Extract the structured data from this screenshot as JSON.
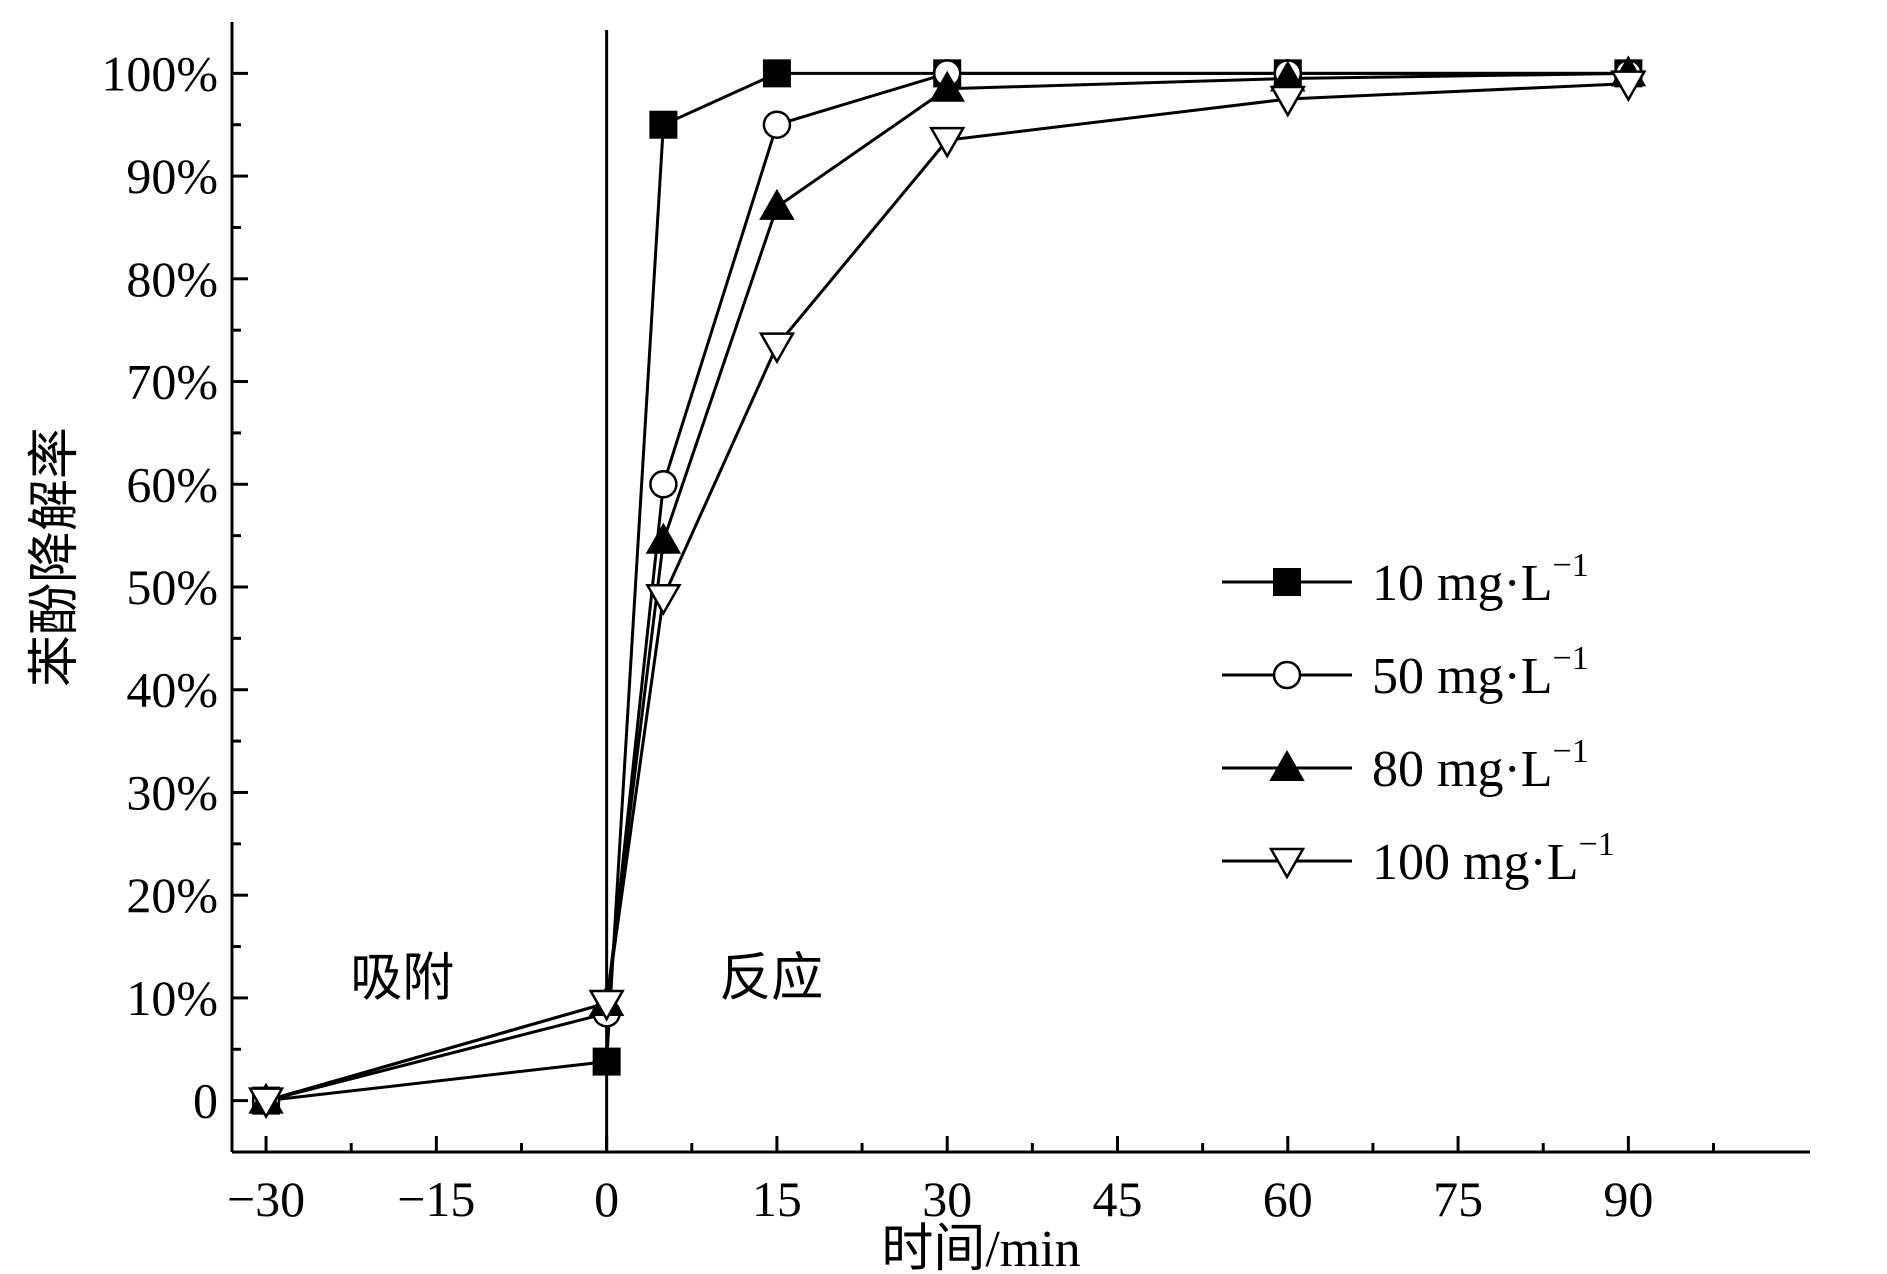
{
  "chart_data": {
    "type": "line",
    "title": "",
    "xlabel": "时间/min",
    "ylabel": "苯酚降解率",
    "xlim": [
      -33,
      106
    ],
    "ylim": [
      -5,
      105
    ],
    "xticks": [
      -30,
      -15,
      0,
      15,
      30,
      45,
      60,
      75,
      90
    ],
    "xtick_labels": [
      "−30",
      "−15",
      "0",
      "15",
      "30",
      "45",
      "60",
      "75",
      "90"
    ],
    "yticks": [
      0,
      10,
      20,
      30,
      40,
      50,
      60,
      70,
      80,
      90,
      100
    ],
    "ytick_labels": [
      "0",
      "10%",
      "20%",
      "30%",
      "40%",
      "50%",
      "60%",
      "70%",
      "80%",
      "90%",
      "100%"
    ],
    "grid": false,
    "legend_position": "right-middle",
    "divider_x": 0,
    "annotations": [
      {
        "text": "吸附",
        "x": -18,
        "y": 12
      },
      {
        "text": "反应",
        "x": 14.5,
        "y": 12
      }
    ],
    "series": [
      {
        "name": "10 mg·L",
        "name_sup": "−1",
        "marker": "square-filled",
        "x": [
          -30,
          0,
          5,
          15,
          30,
          60,
          90
        ],
        "y": [
          0,
          3.8,
          95,
          100,
          100,
          100,
          100
        ]
      },
      {
        "name": "50 mg·L",
        "name_sup": "−1",
        "marker": "circle-open",
        "x": [
          -30,
          0,
          5,
          15,
          30,
          60,
          90
        ],
        "y": [
          0,
          8.5,
          60,
          95,
          100,
          100,
          100
        ]
      },
      {
        "name": "80 mg·L",
        "name_sup": "−1",
        "marker": "triangle-up-filled",
        "x": [
          -30,
          0,
          5,
          15,
          30,
          60,
          90
        ],
        "y": [
          0,
          9.5,
          54.5,
          87,
          98.5,
          99.5,
          100
        ]
      },
      {
        "name": "100 mg·L",
        "name_sup": "−1",
        "marker": "triangle-down-open",
        "x": [
          -30,
          0,
          5,
          15,
          30,
          60,
          90
        ],
        "y": [
          0,
          9.5,
          49,
          73.5,
          93.5,
          97.5,
          99
        ]
      }
    ],
    "colors": {
      "line": "#000000",
      "background": "#ffffff"
    }
  }
}
